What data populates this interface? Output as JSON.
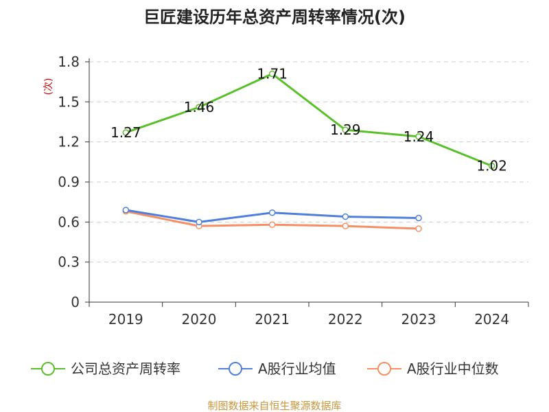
{
  "chart_data": {
    "type": "line",
    "title": "巨匠建设历年总资产周转率情况(次)",
    "ylabel": "(次)",
    "xlabel": "",
    "categories": [
      "2019",
      "2020",
      "2021",
      "2022",
      "2023",
      "2024"
    ],
    "y_ticks": [
      "0",
      "0.3",
      "0.6",
      "0.9",
      "1.2",
      "1.5",
      "1.8"
    ],
    "ylim": [
      0,
      1.8
    ],
    "grid": true,
    "legend_position": "bottom",
    "series": [
      {
        "name": "公司总资产周转率",
        "color": "#5ac02a",
        "values": [
          1.27,
          1.46,
          1.71,
          1.29,
          1.24,
          1.02
        ],
        "labels": [
          "1.27",
          "1.46",
          "1.71",
          "1.29",
          "1.24",
          "1.02"
        ]
      },
      {
        "name": "A股行业均值",
        "color": "#4f7fdc",
        "values": [
          0.69,
          0.6,
          0.67,
          0.64,
          0.63,
          null
        ]
      },
      {
        "name": "A股行业中位数",
        "color": "#f49064",
        "values": [
          0.68,
          0.57,
          0.58,
          0.57,
          0.55,
          null
        ]
      }
    ],
    "source": "制图数据来自恒生聚源数据库"
  }
}
